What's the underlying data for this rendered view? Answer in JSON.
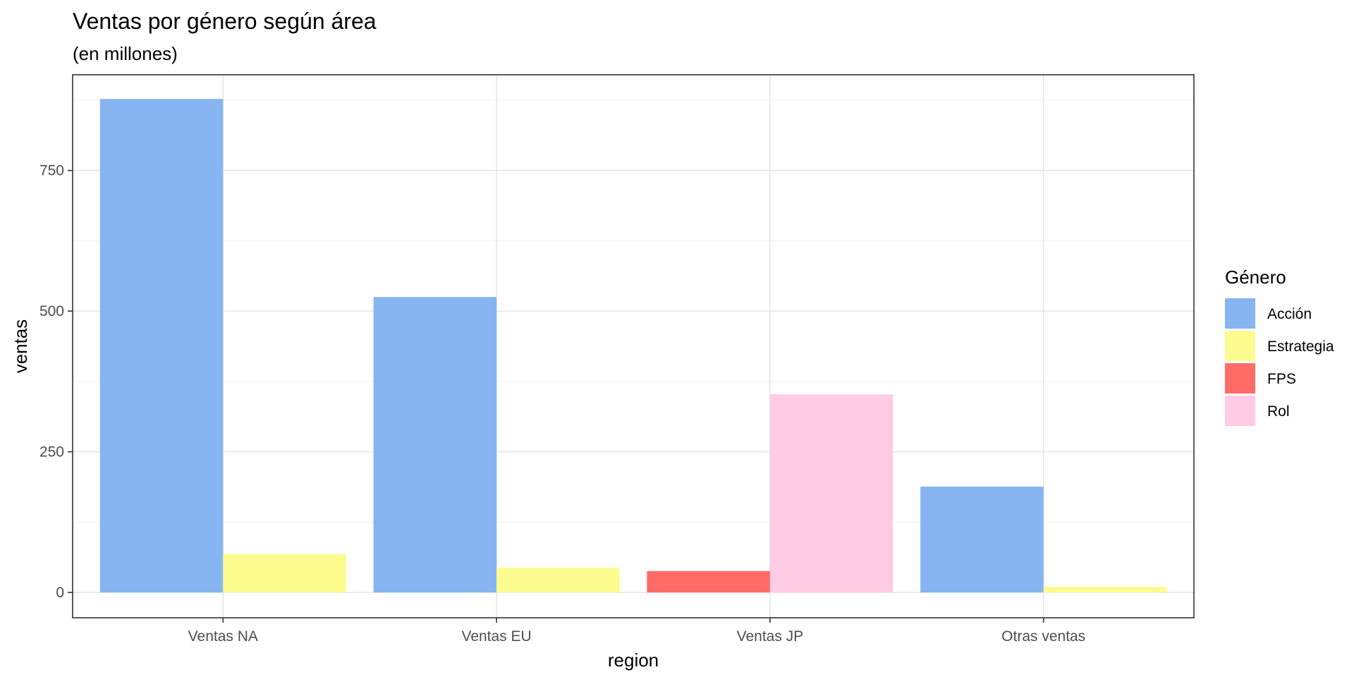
{
  "chart_data": {
    "type": "bar",
    "title": "Ventas por género según área",
    "subtitle": "(en millones)",
    "xlabel": "region",
    "ylabel": "ventas",
    "ylim": [
      -45,
      920
    ],
    "yticks": [
      0,
      250,
      500,
      750
    ],
    "grid": true,
    "legend_position": "right",
    "legend_title": "Género",
    "categories": [
      "Ventas NA",
      "Ventas EU",
      "Ventas JP",
      "Otras ventas"
    ],
    "legend": [
      {
        "name": "Acción",
        "color": "#87B5F2"
      },
      {
        "name": "Estrategia",
        "color": "#FCFC8F"
      },
      {
        "name": "FPS",
        "color": "#FF6B66"
      },
      {
        "name": "Rol",
        "color": "#FFCCE3"
      }
    ],
    "groups": [
      {
        "category": "Ventas NA",
        "bars": [
          {
            "genre": "Acción",
            "value": 877,
            "color": "#87B5F2"
          },
          {
            "genre": "Estrategia",
            "value": 68,
            "color": "#FCFC8F"
          }
        ]
      },
      {
        "category": "Ventas EU",
        "bars": [
          {
            "genre": "Acción",
            "value": 525,
            "color": "#87B5F2"
          },
          {
            "genre": "Estrategia",
            "value": 44,
            "color": "#FCFC8F"
          }
        ]
      },
      {
        "category": "Ventas JP",
        "bars": [
          {
            "genre": "FPS",
            "value": 38,
            "color": "#FF6B66"
          },
          {
            "genre": "Rol",
            "value": 352,
            "color": "#FFCCE3"
          }
        ]
      },
      {
        "category": "Otras ventas",
        "bars": [
          {
            "genre": "Acción",
            "value": 188,
            "color": "#87B5F2"
          },
          {
            "genre": "Estrategia",
            "value": 10,
            "color": "#FCFC8F"
          }
        ]
      }
    ]
  }
}
